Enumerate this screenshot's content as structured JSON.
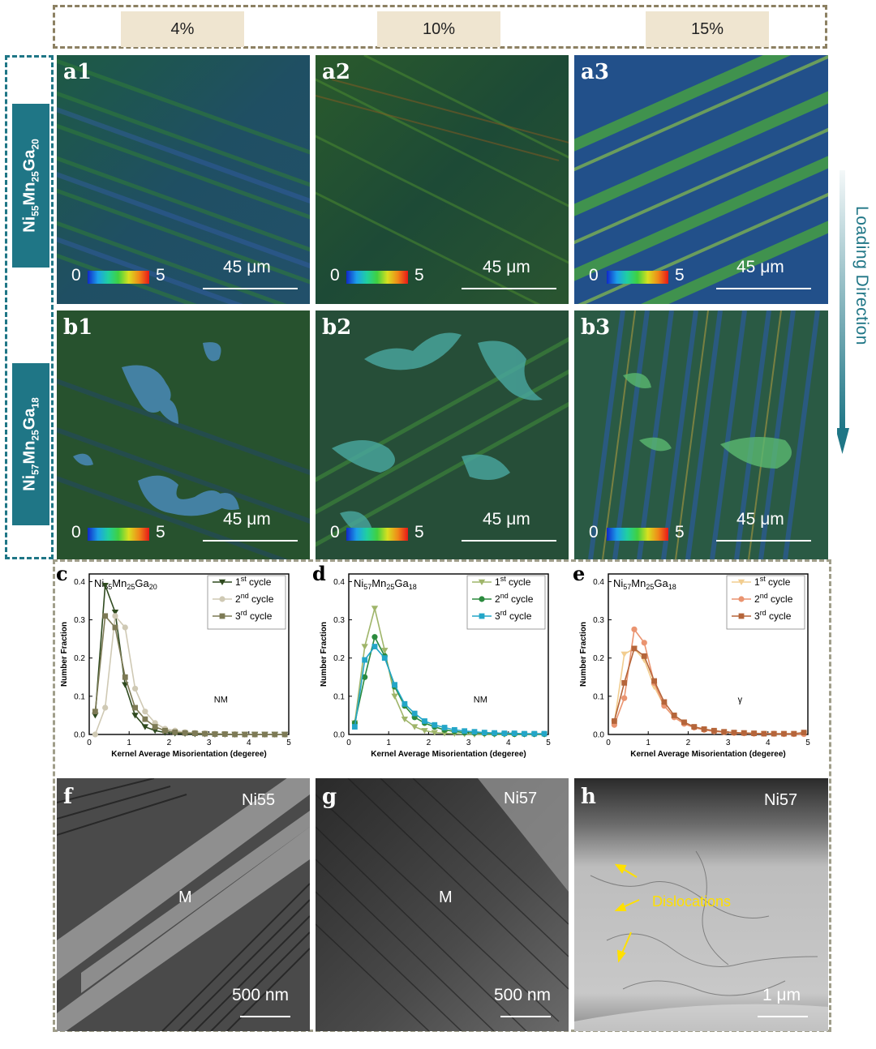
{
  "strain_headers": [
    "4%",
    "10%",
    "15%"
  ],
  "alloys": {
    "row_a": {
      "base": "Ni",
      "ni": "55",
      "mn_elem": "Mn",
      "mn": "25",
      "ga_elem": "Ga",
      "ga": "20"
    },
    "row_b": {
      "base": "Ni",
      "ni": "57",
      "mn_elem": "Mn",
      "mn": "25",
      "ga_elem": "Ga",
      "ga": "18"
    }
  },
  "loading_direction": "Loading Direction",
  "kam_panels": [
    {
      "label": "a1",
      "scale": "45 μm",
      "cb_min": "0",
      "cb_max": "5"
    },
    {
      "label": "a2",
      "scale": "45 μm",
      "cb_min": "0",
      "cb_max": "5"
    },
    {
      "label": "a3",
      "scale": "45 μm",
      "cb_min": "0",
      "cb_max": "5"
    },
    {
      "label": "b1",
      "scale": "45 μm",
      "cb_min": "0",
      "cb_max": "5"
    },
    {
      "label": "b2",
      "scale": "45 μm",
      "cb_min": "0",
      "cb_max": "5"
    },
    {
      "label": "b3",
      "scale": "45 μm",
      "cb_min": "0",
      "cb_max": "5"
    }
  ],
  "colors": {
    "teal": "#1f7686",
    "beige": "#efe5d0"
  },
  "chart_data": [
    {
      "type": "line",
      "panel_label": "c",
      "title_parts": [
        "Ni",
        "55",
        "Mn",
        "25",
        "Ga",
        "20"
      ],
      "xlabel": "Kernel Average Misorientation (degeree)",
      "ylabel": "Number Fraction",
      "annotation": "NM",
      "xlim": [
        0,
        5
      ],
      "ylim": [
        0,
        0.42
      ],
      "xticks": [
        "0",
        "1",
        "2",
        "3",
        "4",
        "5"
      ],
      "yticks": [
        "0.0",
        "0.1",
        "0.2",
        "0.3",
        "0.4"
      ],
      "legend_position": "top-right",
      "series": [
        {
          "name_prefix": "1",
          "name_sup": "st",
          "name_suffix": " cycle",
          "color": "#2f4a1f",
          "marker": "tri-down",
          "x": [
            0.15,
            0.4,
            0.65,
            0.9,
            1.15,
            1.4,
            1.65,
            1.9,
            2.15,
            2.4,
            2.65,
            2.9,
            3.15,
            3.4,
            3.65,
            3.9,
            4.15,
            4.4,
            4.65,
            4.9
          ],
          "y": [
            0.05,
            0.39,
            0.32,
            0.13,
            0.05,
            0.02,
            0.01,
            0.005,
            0.003,
            0.002,
            0.001,
            0.001,
            0,
            0,
            0,
            0,
            0,
            0,
            0,
            0
          ]
        },
        {
          "name_prefix": "2",
          "name_sup": "nd",
          "name_suffix": " cycle",
          "color": "#cfc9b4",
          "marker": "circle",
          "x": [
            0.15,
            0.4,
            0.65,
            0.9,
            1.15,
            1.4,
            1.65,
            1.9,
            2.15,
            2.4,
            2.65,
            2.9,
            3.15,
            3.4,
            3.65,
            3.9,
            4.15,
            4.4,
            4.65,
            4.9
          ],
          "y": [
            0.0,
            0.07,
            0.31,
            0.28,
            0.12,
            0.06,
            0.03,
            0.015,
            0.01,
            0.006,
            0.004,
            0.003,
            0.002,
            0.001,
            0.001,
            0,
            0,
            0,
            0,
            0
          ]
        },
        {
          "name_prefix": "3",
          "name_sup": "rd",
          "name_suffix": " cycle",
          "color": "#7d7a55",
          "marker": "square",
          "x": [
            0.15,
            0.4,
            0.65,
            0.9,
            1.15,
            1.4,
            1.65,
            1.9,
            2.15,
            2.4,
            2.65,
            2.9,
            3.15,
            3.4,
            3.65,
            3.9,
            4.15,
            4.4,
            4.65,
            4.9
          ],
          "y": [
            0.06,
            0.31,
            0.28,
            0.15,
            0.07,
            0.04,
            0.02,
            0.01,
            0.006,
            0.004,
            0.003,
            0.002,
            0.001,
            0.001,
            0,
            0,
            0,
            0,
            0,
            0
          ]
        }
      ]
    },
    {
      "type": "line",
      "panel_label": "d",
      "title_parts": [
        "Ni",
        "57",
        "Mn",
        "25",
        "Ga",
        "18"
      ],
      "xlabel": "Kernel Average Misorientation (degeree)",
      "ylabel": "Number Fraction",
      "annotation": "NM",
      "xlim": [
        0,
        5
      ],
      "ylim": [
        0,
        0.42
      ],
      "xticks": [
        "0",
        "1",
        "2",
        "3",
        "4",
        "5"
      ],
      "yticks": [
        "0.0",
        "0.1",
        "0.2",
        "0.3",
        "0.4"
      ],
      "legend_position": "top-right",
      "series": [
        {
          "name_prefix": "1",
          "name_sup": "st",
          "name_suffix": " cycle",
          "color": "#9fb56a",
          "marker": "tri-down",
          "x": [
            0.15,
            0.4,
            0.65,
            0.9,
            1.15,
            1.4,
            1.65,
            1.9,
            2.15,
            2.4,
            2.65,
            2.9,
            3.15,
            3.4,
            3.65,
            3.9,
            4.15,
            4.4,
            4.65,
            4.9
          ],
          "y": [
            0.03,
            0.23,
            0.33,
            0.22,
            0.1,
            0.04,
            0.02,
            0.01,
            0.005,
            0.003,
            0.002,
            0.001,
            0,
            0,
            0,
            0,
            0,
            0,
            0,
            0
          ]
        },
        {
          "name_prefix": "2",
          "name_sup": "nd",
          "name_suffix": " cycle",
          "color": "#2b8a3e",
          "marker": "circle",
          "x": [
            0.15,
            0.4,
            0.65,
            0.9,
            1.15,
            1.4,
            1.65,
            1.9,
            2.15,
            2.4,
            2.65,
            2.9,
            3.15,
            3.4,
            3.65,
            3.9,
            4.15,
            4.4,
            4.65,
            4.9
          ],
          "y": [
            0.03,
            0.15,
            0.255,
            0.205,
            0.125,
            0.075,
            0.045,
            0.03,
            0.02,
            0.012,
            0.008,
            0.005,
            0.004,
            0.003,
            0.002,
            0.002,
            0.001,
            0.001,
            0.001,
            0.001
          ]
        },
        {
          "name_prefix": "3",
          "name_sup": "rd",
          "name_suffix": " cycle",
          "color": "#23a6c8",
          "marker": "square",
          "x": [
            0.15,
            0.4,
            0.65,
            0.9,
            1.15,
            1.4,
            1.65,
            1.9,
            2.15,
            2.4,
            2.65,
            2.9,
            3.15,
            3.4,
            3.65,
            3.9,
            4.15,
            4.4,
            4.65,
            4.9
          ],
          "y": [
            0.02,
            0.195,
            0.23,
            0.2,
            0.13,
            0.08,
            0.055,
            0.035,
            0.025,
            0.018,
            0.012,
            0.009,
            0.007,
            0.005,
            0.004,
            0.003,
            0.003,
            0.002,
            0.002,
            0.002
          ]
        }
      ]
    },
    {
      "type": "line",
      "panel_label": "e",
      "title_parts": [
        "Ni",
        "57",
        "Mn",
        "25",
        "Ga",
        "18"
      ],
      "xlabel": "Kernel Average Misorientation (degeree)",
      "ylabel": "Number Fraction",
      "annotation": "γ",
      "xlim": [
        0,
        5
      ],
      "ylim": [
        0,
        0.42
      ],
      "xticks": [
        "0",
        "1",
        "2",
        "3",
        "4",
        "5"
      ],
      "yticks": [
        "0.0",
        "0.1",
        "0.2",
        "0.3",
        "0.4"
      ],
      "legend_position": "top-right",
      "series": [
        {
          "name_prefix": "1",
          "name_sup": "st",
          "name_suffix": " cycle",
          "color": "#f2cd8f",
          "marker": "tri-down",
          "x": [
            0.15,
            0.4,
            0.65,
            0.9,
            1.15,
            1.4,
            1.65,
            1.9,
            2.15,
            2.4,
            2.65,
            2.9,
            3.15,
            3.4,
            3.65,
            3.9,
            4.15,
            4.4,
            4.65,
            4.9
          ],
          "y": [
            0.03,
            0.21,
            0.225,
            0.195,
            0.125,
            0.075,
            0.045,
            0.028,
            0.018,
            0.012,
            0.008,
            0.006,
            0.004,
            0.003,
            0.002,
            0.002,
            0.001,
            0.001,
            0.001,
            0.001
          ]
        },
        {
          "name_prefix": "2",
          "name_sup": "nd",
          "name_suffix": " cycle",
          "color": "#ea9470",
          "marker": "circle",
          "x": [
            0.15,
            0.4,
            0.65,
            0.9,
            1.15,
            1.4,
            1.65,
            1.9,
            2.15,
            2.4,
            2.65,
            2.9,
            3.15,
            3.4,
            3.65,
            3.9,
            4.15,
            4.4,
            4.65,
            4.9
          ],
          "y": [
            0.025,
            0.095,
            0.275,
            0.24,
            0.135,
            0.075,
            0.045,
            0.028,
            0.018,
            0.012,
            0.008,
            0.006,
            0.004,
            0.003,
            0.002,
            0.002,
            0.002,
            0.001,
            0.001,
            0.001
          ]
        },
        {
          "name_prefix": "3",
          "name_sup": "rd",
          "name_suffix": " cycle",
          "color": "#b5653a",
          "marker": "square",
          "x": [
            0.15,
            0.4,
            0.65,
            0.9,
            1.15,
            1.4,
            1.65,
            1.9,
            2.15,
            2.4,
            2.65,
            2.9,
            3.15,
            3.4,
            3.65,
            3.9,
            4.15,
            4.4,
            4.65,
            4.9
          ],
          "y": [
            0.035,
            0.135,
            0.225,
            0.205,
            0.14,
            0.085,
            0.05,
            0.032,
            0.02,
            0.014,
            0.01,
            0.007,
            0.005,
            0.004,
            0.003,
            0.002,
            0.002,
            0.002,
            0.002,
            0.005
          ]
        }
      ]
    }
  ],
  "tem_panels": [
    {
      "label": "f",
      "sample": "Ni55",
      "phase": "M",
      "scale": "500 nm"
    },
    {
      "label": "g",
      "sample": "Ni57",
      "phase": "M",
      "scale": "500 nm"
    },
    {
      "label": "h",
      "sample": "Ni57",
      "annotation": "Dislocations",
      "scale": "1 μm"
    }
  ]
}
